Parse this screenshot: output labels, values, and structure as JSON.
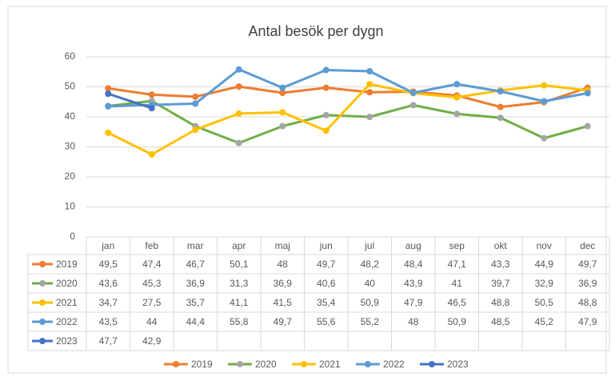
{
  "chart_data": {
    "type": "line",
    "title": "Antal besök per dygn",
    "categories": [
      "jan",
      "feb",
      "mar",
      "apr",
      "maj",
      "jun",
      "jul",
      "aug",
      "sep",
      "okt",
      "nov",
      "dec"
    ],
    "ylim": [
      0,
      60
    ],
    "yticks": [
      0,
      10,
      20,
      30,
      40,
      50,
      60
    ],
    "grid": true,
    "legend": "bottom",
    "data_table": true,
    "series": [
      {
        "name": "2019",
        "color": "#ed7d31",
        "marker_color": "#ed7d31",
        "values": [
          49.5,
          47.4,
          46.7,
          50.1,
          48,
          49.7,
          48.2,
          48.4,
          47.1,
          43.3,
          44.9,
          49.7
        ],
        "value_labels": [
          "49,5",
          "47,4",
          "46,7",
          "50,1",
          "48",
          "49,7",
          "48,2",
          "48,4",
          "47,1",
          "43,3",
          "44,9",
          "49,7"
        ]
      },
      {
        "name": "2020",
        "color": "#70ad47",
        "marker_color": "#a5a5a5",
        "values": [
          43.6,
          45.3,
          36.9,
          31.3,
          36.9,
          40.6,
          40,
          43.9,
          41,
          39.7,
          32.9,
          36.9
        ],
        "value_labels": [
          "43,6",
          "45,3",
          "36,9",
          "31,3",
          "36,9",
          "40,6",
          "40",
          "43,9",
          "41",
          "39,7",
          "32,9",
          "36,9"
        ]
      },
      {
        "name": "2021",
        "color": "#ffc000",
        "marker_color": "#ffc000",
        "values": [
          34.7,
          27.5,
          35.7,
          41.1,
          41.5,
          35.4,
          50.9,
          47.9,
          46.5,
          48.8,
          50.5,
          48.8
        ],
        "value_labels": [
          "34,7",
          "27,5",
          "35,7",
          "41,1",
          "41,5",
          "35,4",
          "50,9",
          "47,9",
          "46,5",
          "48,8",
          "50,5",
          "48,8"
        ]
      },
      {
        "name": "2022",
        "color": "#5b9bd5",
        "marker_color": "#5b9bd5",
        "values": [
          43.5,
          44,
          44.4,
          55.8,
          49.7,
          55.6,
          55.2,
          48,
          50.9,
          48.5,
          45.2,
          47.9
        ],
        "value_labels": [
          "43,5",
          "44",
          "44,4",
          "55,8",
          "49,7",
          "55,6",
          "55,2",
          "48",
          "50,9",
          "48,5",
          "45,2",
          "47,9"
        ]
      },
      {
        "name": "2023",
        "color": "#4472c4",
        "marker_color": "#4472c4",
        "values": [
          47.7,
          42.9,
          null,
          null,
          null,
          null,
          null,
          null,
          null,
          null,
          null,
          null
        ],
        "value_labels": [
          "47,7",
          "42,9",
          null,
          null,
          null,
          null,
          null,
          null,
          null,
          null,
          null,
          null
        ]
      }
    ]
  }
}
